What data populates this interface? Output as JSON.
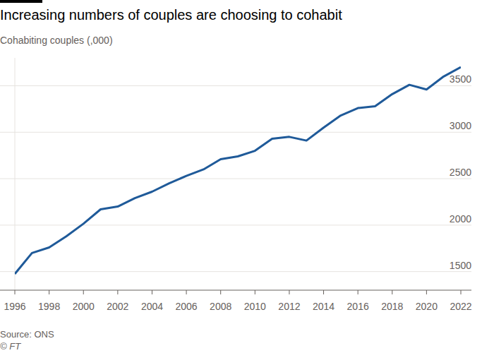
{
  "chart_data": {
    "type": "line",
    "title": "Increasing numbers of couples are choosing to cohabit",
    "subtitle": "Cohabiting couples (,000)",
    "source": "Source: ONS",
    "credit": "© FT",
    "x": [
      1996,
      1997,
      1998,
      1999,
      2000,
      2001,
      2002,
      2003,
      2004,
      2005,
      2006,
      2007,
      2008,
      2009,
      2010,
      2011,
      2012,
      2013,
      2014,
      2015,
      2016,
      2017,
      2018,
      2019,
      2020,
      2021,
      2022
    ],
    "values": [
      1475,
      1700,
      1760,
      1880,
      2015,
      2170,
      2200,
      2290,
      2360,
      2450,
      2530,
      2600,
      2710,
      2740,
      2800,
      2930,
      2950,
      2910,
      3050,
      3180,
      3260,
      3280,
      3410,
      3510,
      3460,
      3600,
      3700
    ],
    "color": "#1f5a99",
    "xlim": [
      1996,
      2022
    ],
    "xticks": [
      1996,
      1998,
      2000,
      2002,
      2004,
      2006,
      2008,
      2010,
      2012,
      2014,
      2016,
      2018,
      2020,
      2022
    ],
    "ylim": [
      1300,
      3800
    ],
    "yticks": [
      1500,
      2000,
      2500,
      3000,
      3500
    ],
    "grid": true
  }
}
